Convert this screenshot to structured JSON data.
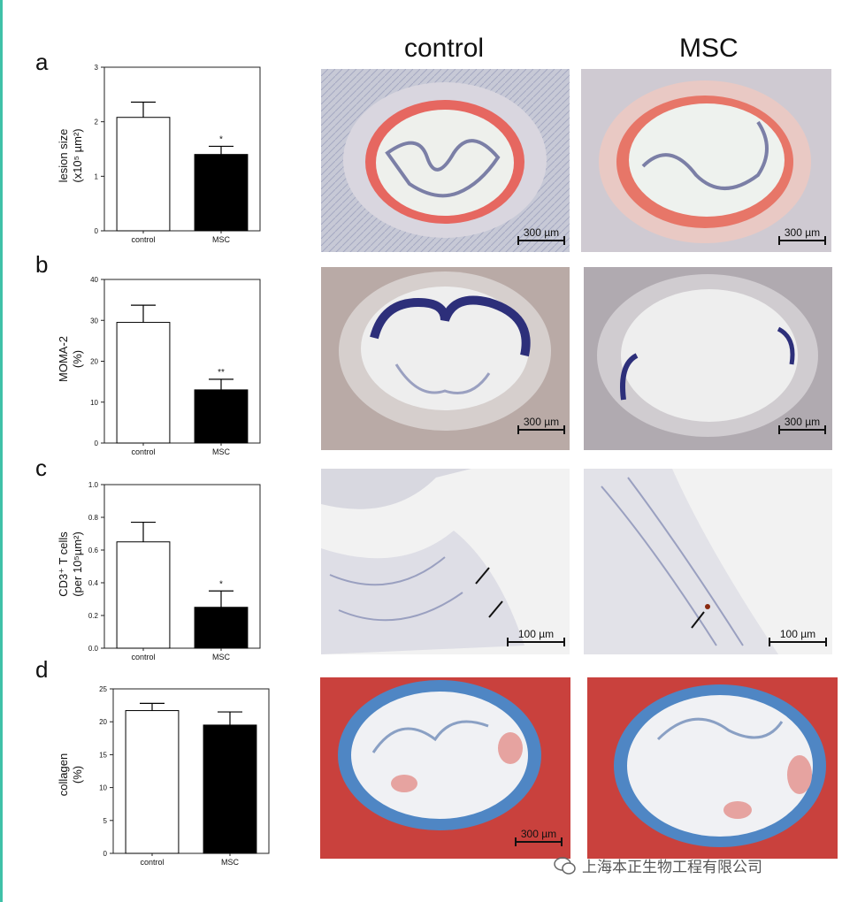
{
  "columns": {
    "control": "control",
    "msc": "MSC"
  },
  "panels": [
    {
      "letter": "a",
      "ylabel_line1": "lesion size",
      "ylabel_line2": "(x10⁵ µm²)",
      "scale": "300 µm"
    },
    {
      "letter": "b",
      "ylabel_line1": "MOMA-2",
      "ylabel_line2": "(%)",
      "scale": "300 µm"
    },
    {
      "letter": "c",
      "ylabel_line1": "CD3⁺ T cells",
      "ylabel_line2": "(per 10⁵µm²)",
      "scale": "100 µm"
    },
    {
      "letter": "d",
      "ylabel_line1": "collagen",
      "ylabel_line2": "(%)",
      "scale": "300 µm"
    }
  ],
  "chart_data": [
    {
      "type": "bar",
      "categories": [
        "control",
        "MSC"
      ],
      "values": [
        2.08,
        1.4
      ],
      "errors": [
        0.28,
        0.15
      ],
      "fills": [
        "#ffffff",
        "#000000"
      ],
      "ylim": [
        0,
        3
      ],
      "ticks": [
        0,
        1,
        2,
        3
      ],
      "tick_labels": [
        "0",
        "1",
        "2",
        "3"
      ],
      "significance": [
        "",
        "*"
      ],
      "ylabel": "lesion size (x10⁵ µm²)"
    },
    {
      "type": "bar",
      "categories": [
        "control",
        "MSC"
      ],
      "values": [
        29.5,
        13.0
      ],
      "errors": [
        4.2,
        2.6
      ],
      "fills": [
        "#ffffff",
        "#000000"
      ],
      "ylim": [
        0,
        40
      ],
      "ticks": [
        0,
        10,
        20,
        30,
        40
      ],
      "tick_labels": [
        "0",
        "10",
        "20",
        "30",
        "40"
      ],
      "significance": [
        "",
        "**"
      ],
      "ylabel": "MOMA-2 (%)"
    },
    {
      "type": "bar",
      "categories": [
        "control",
        "MSC"
      ],
      "values": [
        0.65,
        0.25
      ],
      "errors": [
        0.12,
        0.1
      ],
      "fills": [
        "#ffffff",
        "#000000"
      ],
      "ylim": [
        0,
        1.0
      ],
      "ticks": [
        0,
        0.2,
        0.4,
        0.6,
        0.8,
        1.0
      ],
      "tick_labels": [
        "0.0",
        "0.2",
        "0.4",
        "0.6",
        "0.8",
        "1.0"
      ],
      "significance": [
        "",
        "*"
      ],
      "ylabel": "CD3⁺ T cells (per 10⁵µm²)"
    },
    {
      "type": "bar",
      "categories": [
        "control",
        "MSC"
      ],
      "values": [
        21.7,
        19.5
      ],
      "errors": [
        1.1,
        2.0
      ],
      "fills": [
        "#ffffff",
        "#000000"
      ],
      "ylim": [
        0,
        25
      ],
      "ticks": [
        0,
        5,
        10,
        15,
        20,
        25
      ],
      "tick_labels": [
        "0",
        "5",
        "10",
        "15",
        "20",
        "25"
      ],
      "significance": [
        "",
        ""
      ],
      "ylabel": "collagen (%)"
    }
  ],
  "images": [
    {
      "name": "control-oil-red-o-image",
      "style": "oilred"
    },
    {
      "name": "msc-oil-red-o-image",
      "style": "oilred2"
    },
    {
      "name": "control-moma2-image",
      "style": "moma"
    },
    {
      "name": "msc-moma2-image",
      "style": "moma2"
    },
    {
      "name": "control-cd3-image",
      "style": "cd3"
    },
    {
      "name": "msc-cd3-image",
      "style": "cd3b"
    },
    {
      "name": "control-trichrome-image",
      "style": "tri"
    },
    {
      "name": "msc-trichrome-image",
      "style": "tri2"
    }
  ],
  "watermark": {
    "text": "上海本正生物工程有限公司",
    "icon": "wechat-icon"
  }
}
